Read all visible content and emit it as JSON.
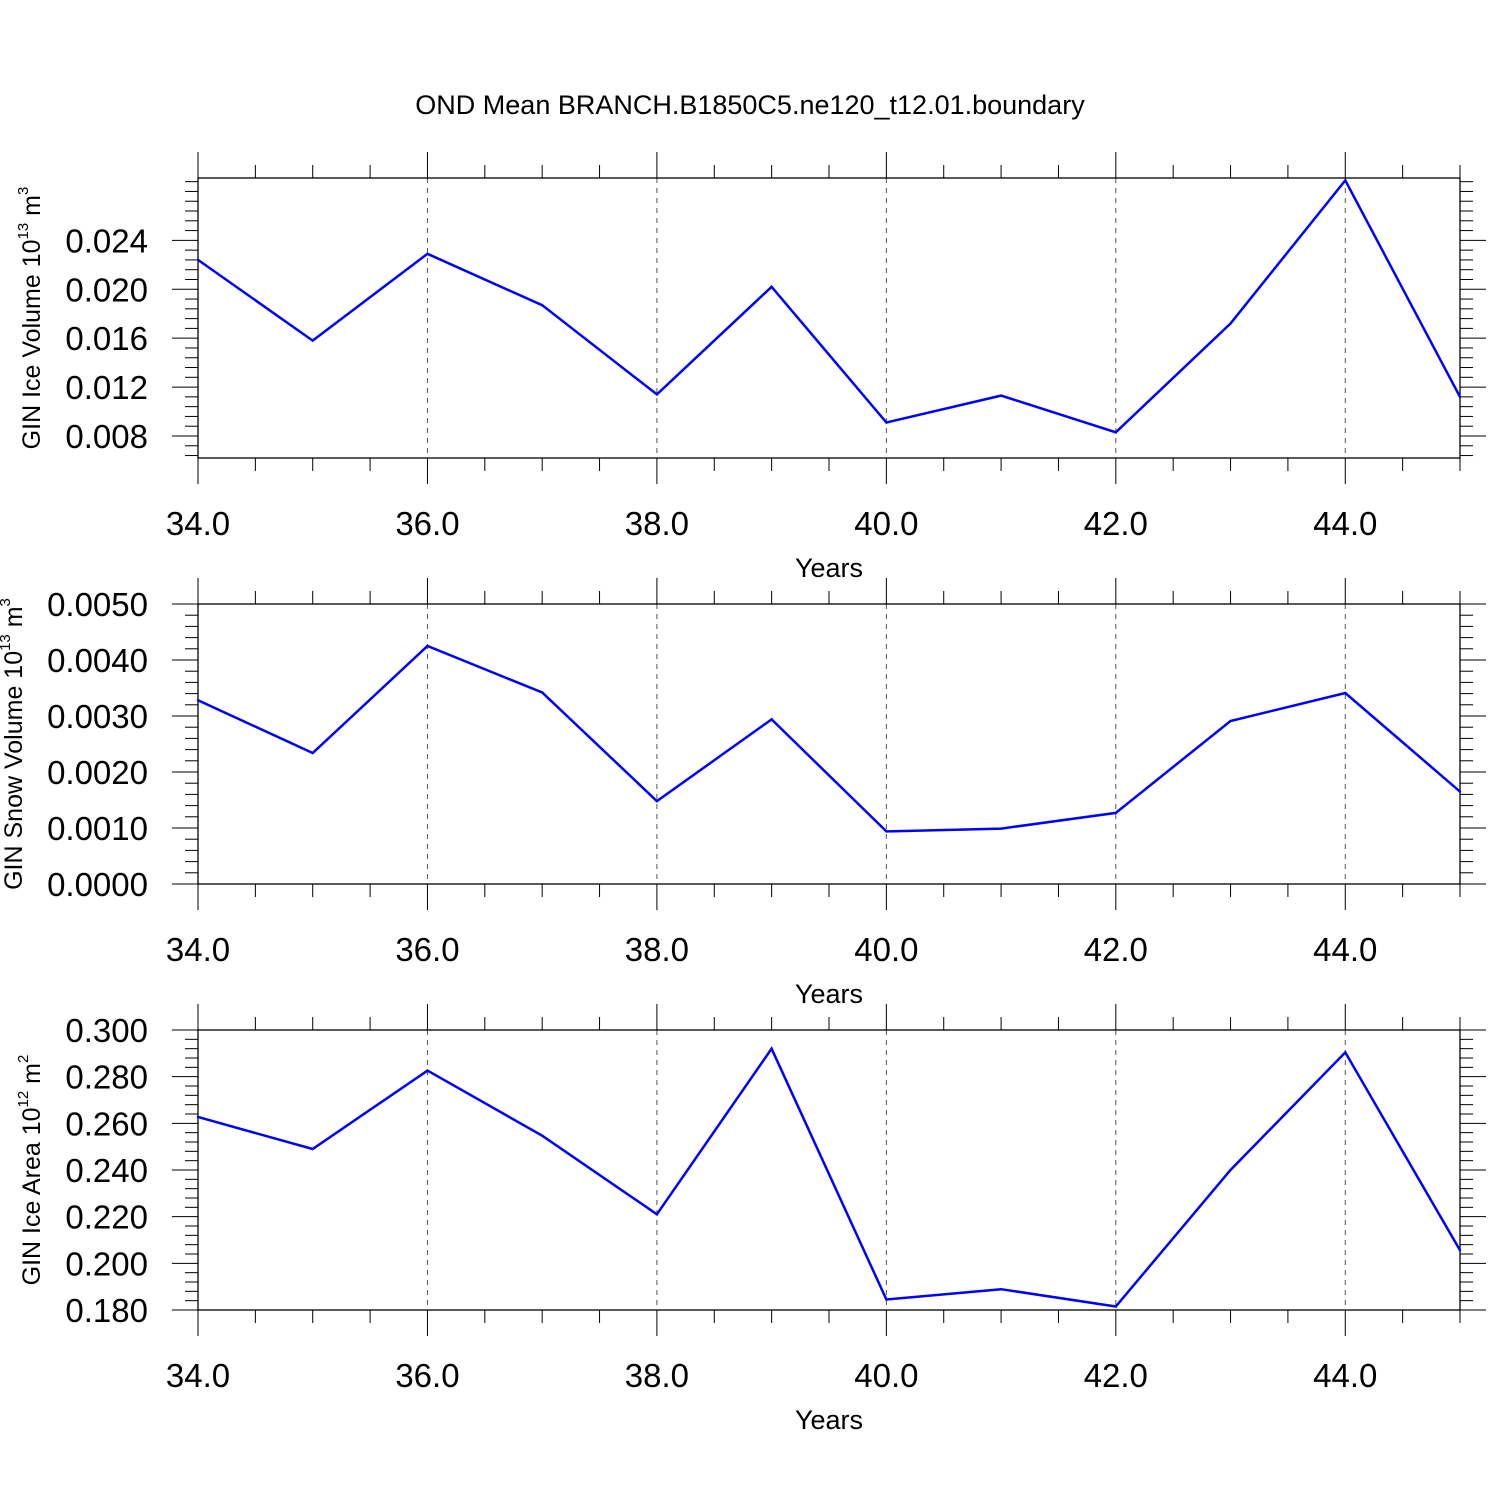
{
  "chart_title": "OND Mean BRANCH.B1850C5.ne120_t12.01.boundary",
  "colors": {
    "series": "#0000ff",
    "axis": "#000000",
    "grid": "#555555"
  },
  "chart_data": [
    {
      "type": "line",
      "title": "",
      "xlabel": "Years",
      "ylabel": {
        "base": "GIN Ice Volume 10",
        "exp": "13",
        "unit": " m",
        "unit_exp": "3"
      },
      "xlim": [
        34,
        45
      ],
      "ylim": [
        0.0062,
        0.0291
      ],
      "x_ticks": [
        34,
        36,
        38,
        40,
        42,
        44
      ],
      "x_tick_labels": [
        "34.0",
        "36.0",
        "38.0",
        "40.0",
        "42.0",
        "44.0"
      ],
      "y_ticks": [
        0.008,
        0.012,
        0.016,
        0.02,
        0.024
      ],
      "y_tick_labels": [
        "0.008",
        "0.012",
        "0.016",
        "0.020",
        "0.024"
      ],
      "x": [
        34,
        35,
        36,
        37,
        38,
        39,
        40,
        41,
        42,
        43,
        44,
        45
      ],
      "values": [
        0.0224,
        0.0158,
        0.0229,
        0.0187,
        0.0114,
        0.0202,
        0.0091,
        0.0113,
        0.0083,
        0.0172,
        0.0289,
        0.0112
      ],
      "grid": "dashed vertical at major x ticks"
    },
    {
      "type": "line",
      "title": "",
      "xlabel": "Years",
      "ylabel": {
        "base": "GIN Snow Volume 10",
        "exp": "13",
        "unit": " m",
        "unit_exp": "3"
      },
      "xlim": [
        34,
        45
      ],
      "ylim": [
        0.0,
        0.005
      ],
      "x_ticks": [
        34,
        36,
        38,
        40,
        42,
        44
      ],
      "x_tick_labels": [
        "34.0",
        "36.0",
        "38.0",
        "40.0",
        "42.0",
        "44.0"
      ],
      "y_ticks": [
        0.0,
        0.001,
        0.002,
        0.003,
        0.004,
        0.005
      ],
      "y_tick_labels": [
        "0.0000",
        "0.0010",
        "0.0020",
        "0.0030",
        "0.0040",
        "0.0050"
      ],
      "x": [
        34,
        35,
        36,
        37,
        38,
        39,
        40,
        41,
        42,
        43,
        44,
        45
      ],
      "values": [
        0.00328,
        0.00234,
        0.00425,
        0.00342,
        0.00148,
        0.00294,
        0.00094,
        0.00099,
        0.00127,
        0.00291,
        0.00341,
        0.00165
      ],
      "grid": "dashed vertical at major x ticks"
    },
    {
      "type": "line",
      "title": "",
      "xlabel": "Years",
      "ylabel": {
        "base": "GIN Ice Area 10",
        "exp": "12",
        "unit": " m",
        "unit_exp": "2"
      },
      "xlim": [
        34,
        45
      ],
      "ylim": [
        0.18,
        0.3
      ],
      "x_ticks": [
        34,
        36,
        38,
        40,
        42,
        44
      ],
      "x_tick_labels": [
        "34.0",
        "36.0",
        "38.0",
        "40.0",
        "42.0",
        "44.0"
      ],
      "y_ticks": [
        0.18,
        0.2,
        0.22,
        0.24,
        0.26,
        0.28,
        0.3
      ],
      "y_tick_labels": [
        "0.180",
        "0.200",
        "0.220",
        "0.240",
        "0.260",
        "0.280",
        "0.300"
      ],
      "x": [
        34,
        35,
        36,
        37,
        38,
        39,
        40,
        41,
        42,
        43,
        44,
        45
      ],
      "values": [
        0.2627,
        0.249,
        0.2826,
        0.2547,
        0.221,
        0.292,
        0.1845,
        0.1889,
        0.1815,
        0.24,
        0.2904,
        0.2056
      ],
      "grid": "dashed vertical at major x ticks"
    }
  ]
}
